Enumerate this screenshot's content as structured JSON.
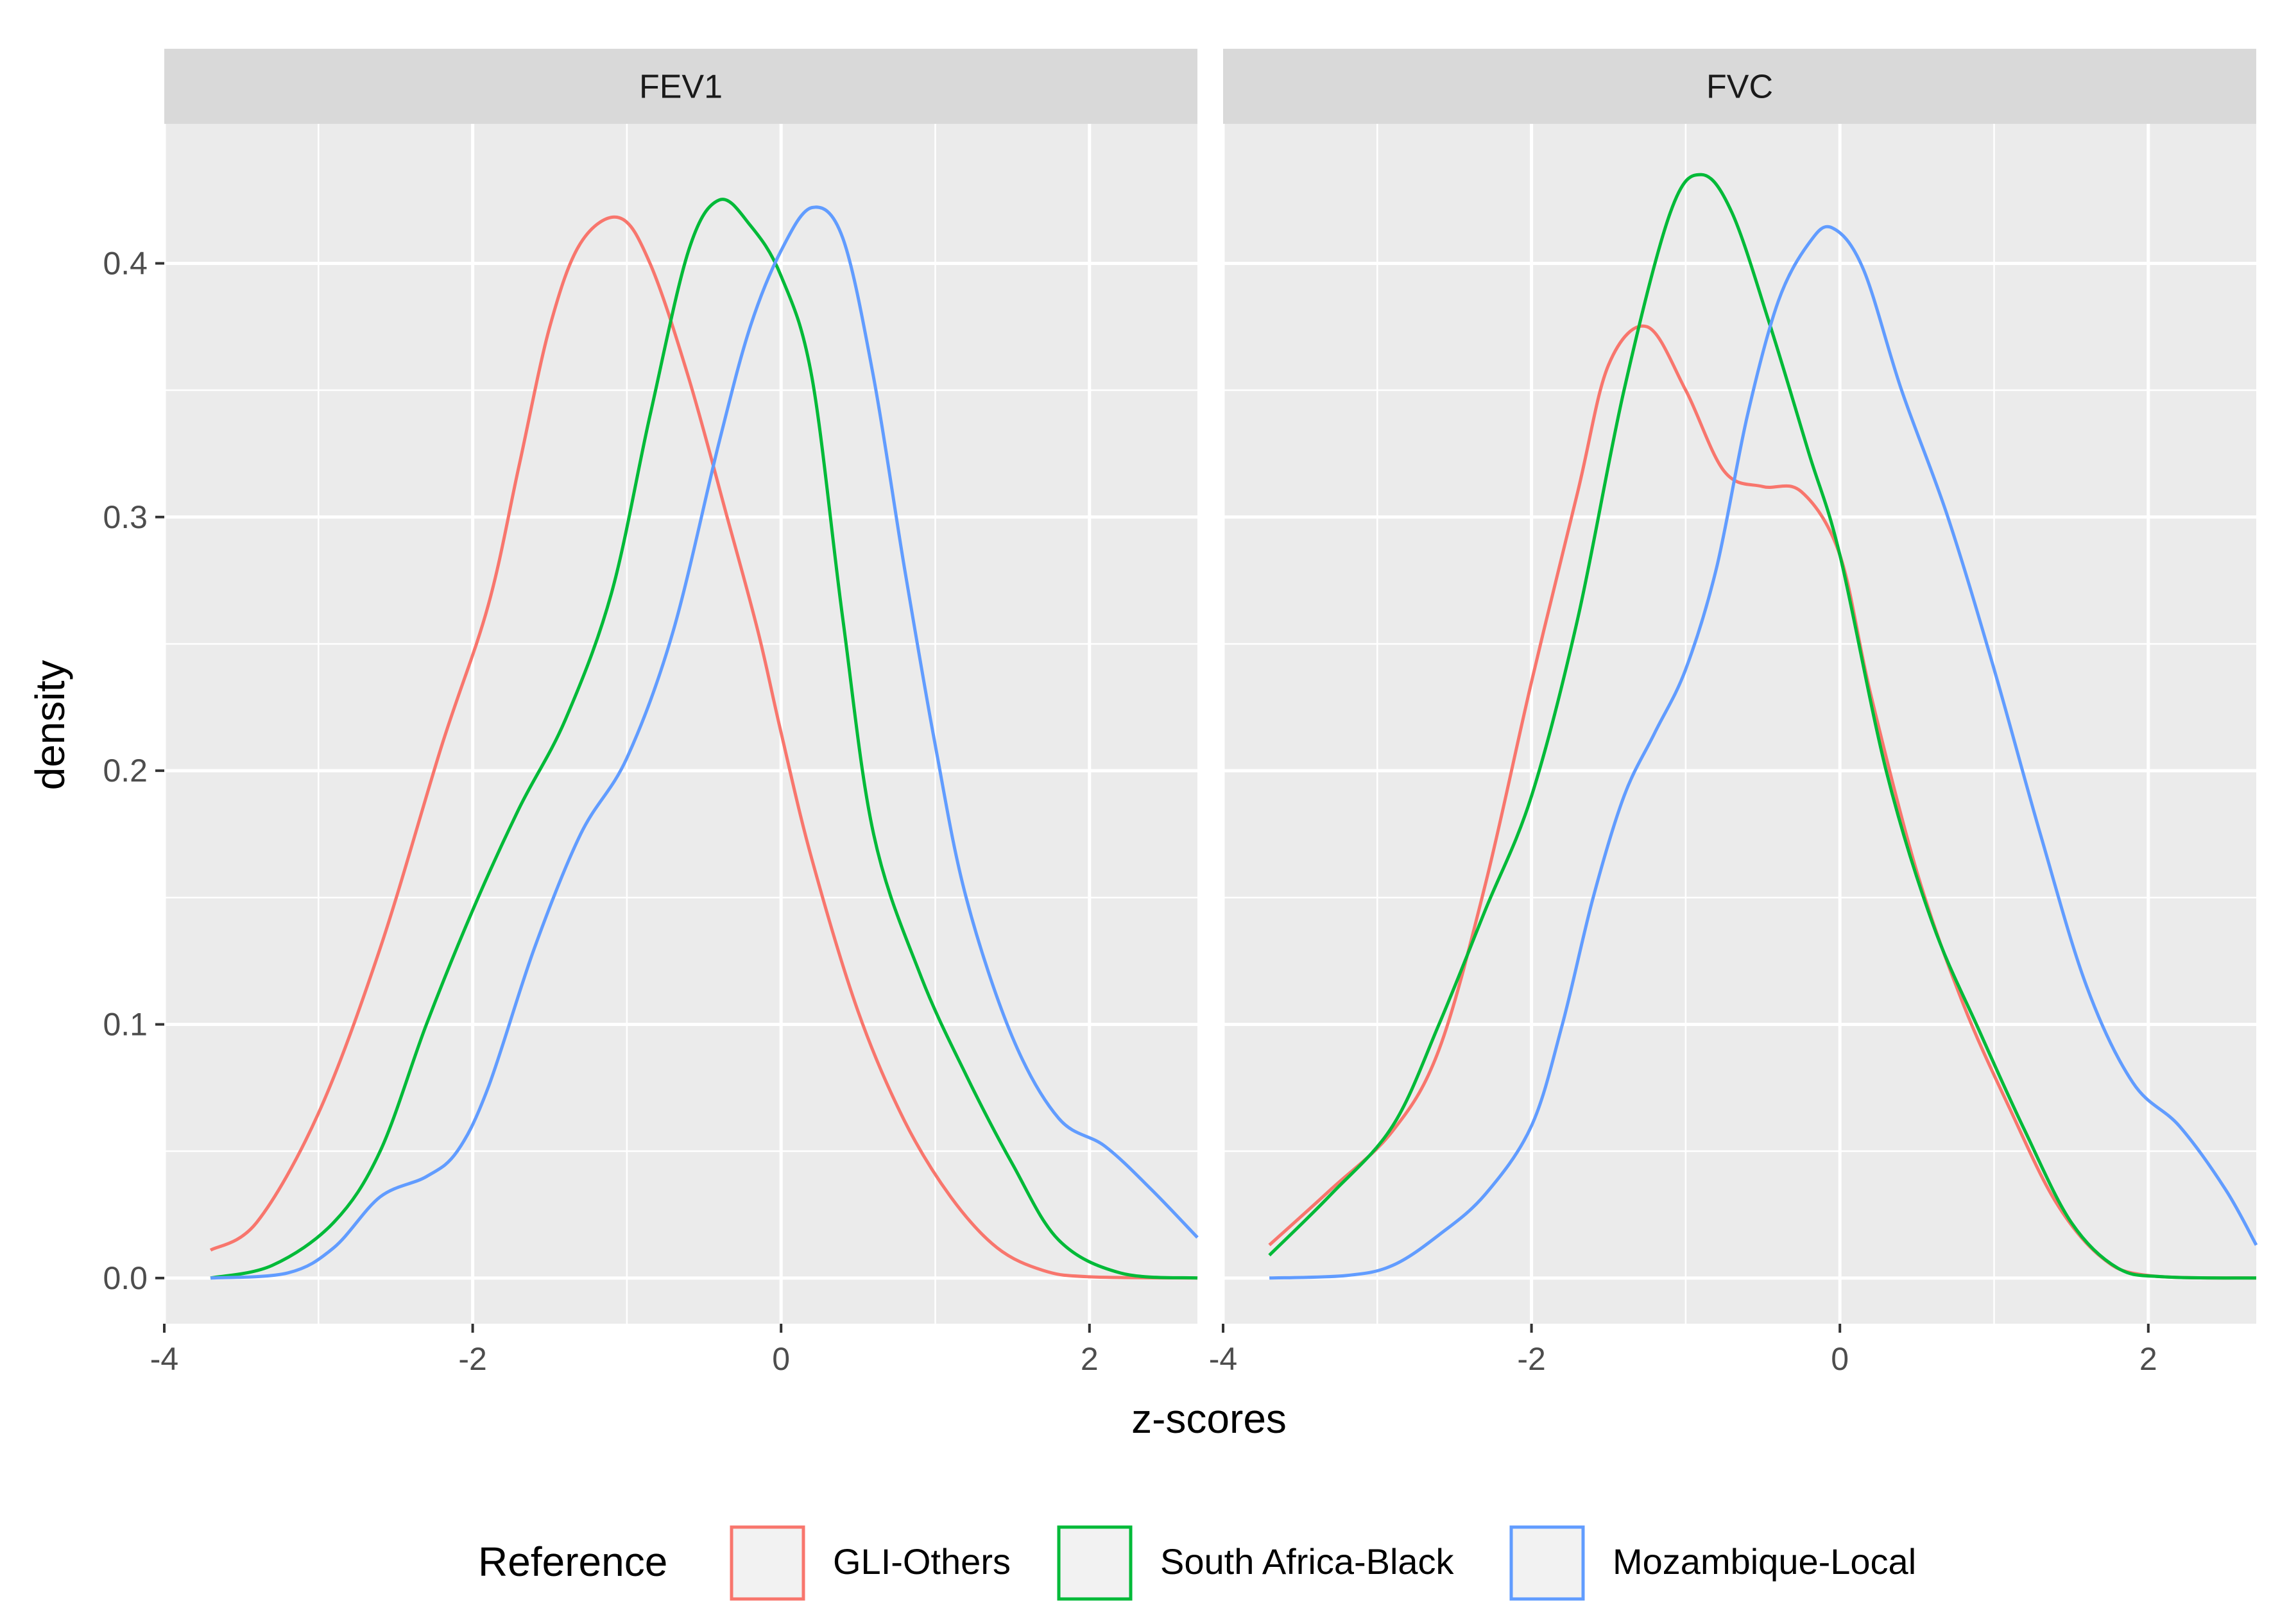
{
  "chart_data": {
    "type": "line",
    "subtype": "density",
    "xlabel": "z-scores",
    "ylabel": "density",
    "xlim": [
      -4,
      2.7
    ],
    "ylim": [
      -0.018,
      0.455
    ],
    "x_ticks": [
      -4,
      -2,
      0,
      2
    ],
    "x_tick_labels": [
      "-4",
      "-2",
      "0",
      "2"
    ],
    "y_ticks": [
      0,
      0.1,
      0.2,
      0.3,
      0.4
    ],
    "y_tick_labels": [
      "0.0",
      "0.1",
      "0.2",
      "0.3",
      "0.4"
    ],
    "grid": true,
    "legend": {
      "title": "Reference",
      "placement": "bottom",
      "entries": [
        {
          "name": "GLI-Others",
          "color": "#F8766D"
        },
        {
          "name": "South Africa-Black",
          "color": "#00BA38"
        },
        {
          "name": "Mozambique-Local",
          "color": "#619CFF"
        }
      ]
    },
    "panels": [
      {
        "title": "FEV1",
        "series": [
          {
            "name": "GLI-Others",
            "color": "#F8766D",
            "points": [
              [
                -3.7,
                0.011
              ],
              [
                -3.4,
                0.022
              ],
              [
                -3.0,
                0.065
              ],
              [
                -2.6,
                0.13
              ],
              [
                -2.2,
                0.21
              ],
              [
                -1.9,
                0.265
              ],
              [
                -1.7,
                0.32
              ],
              [
                -1.5,
                0.375
              ],
              [
                -1.3,
                0.408
              ],
              [
                -1.05,
                0.418
              ],
              [
                -0.85,
                0.4
              ],
              [
                -0.6,
                0.355
              ],
              [
                -0.35,
                0.3
              ],
              [
                -0.15,
                0.255
              ],
              [
                0.0,
                0.215
              ],
              [
                0.2,
                0.165
              ],
              [
                0.5,
                0.105
              ],
              [
                0.8,
                0.062
              ],
              [
                1.1,
                0.032
              ],
              [
                1.4,
                0.012
              ],
              [
                1.7,
                0.003
              ],
              [
                2.0,
                0.0005
              ],
              [
                2.7,
                0.0
              ]
            ]
          },
          {
            "name": "South Africa-Black",
            "color": "#00BA38",
            "points": [
              [
                -3.7,
                0.0
              ],
              [
                -3.3,
                0.005
              ],
              [
                -2.9,
                0.022
              ],
              [
                -2.6,
                0.05
              ],
              [
                -2.3,
                0.1
              ],
              [
                -2.0,
                0.145
              ],
              [
                -1.7,
                0.185
              ],
              [
                -1.4,
                0.22
              ],
              [
                -1.1,
                0.27
              ],
              [
                -0.85,
                0.34
              ],
              [
                -0.6,
                0.405
              ],
              [
                -0.4,
                0.425
              ],
              [
                -0.2,
                0.415
              ],
              [
                0.0,
                0.395
              ],
              [
                0.2,
                0.355
              ],
              [
                0.4,
                0.26
              ],
              [
                0.6,
                0.175
              ],
              [
                0.9,
                0.12
              ],
              [
                1.2,
                0.08
              ],
              [
                1.5,
                0.045
              ],
              [
                1.8,
                0.015
              ],
              [
                2.2,
                0.002
              ],
              [
                2.7,
                0.0
              ]
            ]
          },
          {
            "name": "Mozambique-Local",
            "color": "#619CFF",
            "points": [
              [
                -3.7,
                0.0
              ],
              [
                -3.2,
                0.002
              ],
              [
                -2.9,
                0.012
              ],
              [
                -2.6,
                0.032
              ],
              [
                -2.3,
                0.04
              ],
              [
                -2.1,
                0.05
              ],
              [
                -1.9,
                0.075
              ],
              [
                -1.6,
                0.13
              ],
              [
                -1.3,
                0.175
              ],
              [
                -1.0,
                0.205
              ],
              [
                -0.7,
                0.255
              ],
              [
                -0.4,
                0.33
              ],
              [
                -0.2,
                0.375
              ],
              [
                0.0,
                0.405
              ],
              [
                0.2,
                0.422
              ],
              [
                0.4,
                0.41
              ],
              [
                0.6,
                0.355
              ],
              [
                0.8,
                0.28
              ],
              [
                1.0,
                0.21
              ],
              [
                1.2,
                0.15
              ],
              [
                1.5,
                0.095
              ],
              [
                1.8,
                0.063
              ],
              [
                2.1,
                0.052
              ],
              [
                2.4,
                0.035
              ],
              [
                2.7,
                0.016
              ]
            ]
          }
        ]
      },
      {
        "title": "FVC",
        "series": [
          {
            "name": "GLI-Others",
            "color": "#F8766D",
            "points": [
              [
                -3.7,
                0.013
              ],
              [
                -3.3,
                0.035
              ],
              [
                -2.9,
                0.058
              ],
              [
                -2.6,
                0.09
              ],
              [
                -2.3,
                0.155
              ],
              [
                -2.0,
                0.235
              ],
              [
                -1.7,
                0.31
              ],
              [
                -1.5,
                0.36
              ],
              [
                -1.25,
                0.375
              ],
              [
                -1.0,
                0.35
              ],
              [
                -0.75,
                0.318
              ],
              [
                -0.5,
                0.312
              ],
              [
                -0.25,
                0.31
              ],
              [
                0.0,
                0.285
              ],
              [
                0.2,
                0.23
              ],
              [
                0.5,
                0.16
              ],
              [
                0.8,
                0.108
              ],
              [
                1.1,
                0.067
              ],
              [
                1.4,
                0.03
              ],
              [
                1.7,
                0.008
              ],
              [
                2.0,
                0.001
              ],
              [
                2.7,
                0.0
              ]
            ]
          },
          {
            "name": "South Africa-Black",
            "color": "#00BA38",
            "points": [
              [
                -3.7,
                0.009
              ],
              [
                -3.3,
                0.033
              ],
              [
                -2.9,
                0.06
              ],
              [
                -2.6,
                0.1
              ],
              [
                -2.3,
                0.145
              ],
              [
                -2.0,
                0.19
              ],
              [
                -1.7,
                0.26
              ],
              [
                -1.4,
                0.35
              ],
              [
                -1.1,
                0.42
              ],
              [
                -0.9,
                0.435
              ],
              [
                -0.7,
                0.42
              ],
              [
                -0.45,
                0.375
              ],
              [
                -0.2,
                0.325
              ],
              [
                0.0,
                0.285
              ],
              [
                0.3,
                0.2
              ],
              [
                0.6,
                0.14
              ],
              [
                0.9,
                0.098
              ],
              [
                1.2,
                0.058
              ],
              [
                1.5,
                0.022
              ],
              [
                1.8,
                0.004
              ],
              [
                2.1,
                0.0005
              ],
              [
                2.7,
                0.0
              ]
            ]
          },
          {
            "name": "Mozambique-Local",
            "color": "#619CFF",
            "points": [
              [
                -3.7,
                0.0
              ],
              [
                -3.2,
                0.001
              ],
              [
                -2.9,
                0.005
              ],
              [
                -2.6,
                0.017
              ],
              [
                -2.3,
                0.033
              ],
              [
                -2.0,
                0.06
              ],
              [
                -1.8,
                0.1
              ],
              [
                -1.6,
                0.15
              ],
              [
                -1.4,
                0.19
              ],
              [
                -1.2,
                0.215
              ],
              [
                -1.0,
                0.24
              ],
              [
                -0.8,
                0.28
              ],
              [
                -0.6,
                0.34
              ],
              [
                -0.4,
                0.385
              ],
              [
                -0.2,
                0.408
              ],
              [
                -0.05,
                0.414
              ],
              [
                0.15,
                0.398
              ],
              [
                0.4,
                0.35
              ],
              [
                0.7,
                0.3
              ],
              [
                1.0,
                0.24
              ],
              [
                1.3,
                0.175
              ],
              [
                1.6,
                0.115
              ],
              [
                1.9,
                0.077
              ],
              [
                2.2,
                0.06
              ],
              [
                2.5,
                0.035
              ],
              [
                2.7,
                0.013
              ]
            ]
          }
        ]
      }
    ]
  }
}
